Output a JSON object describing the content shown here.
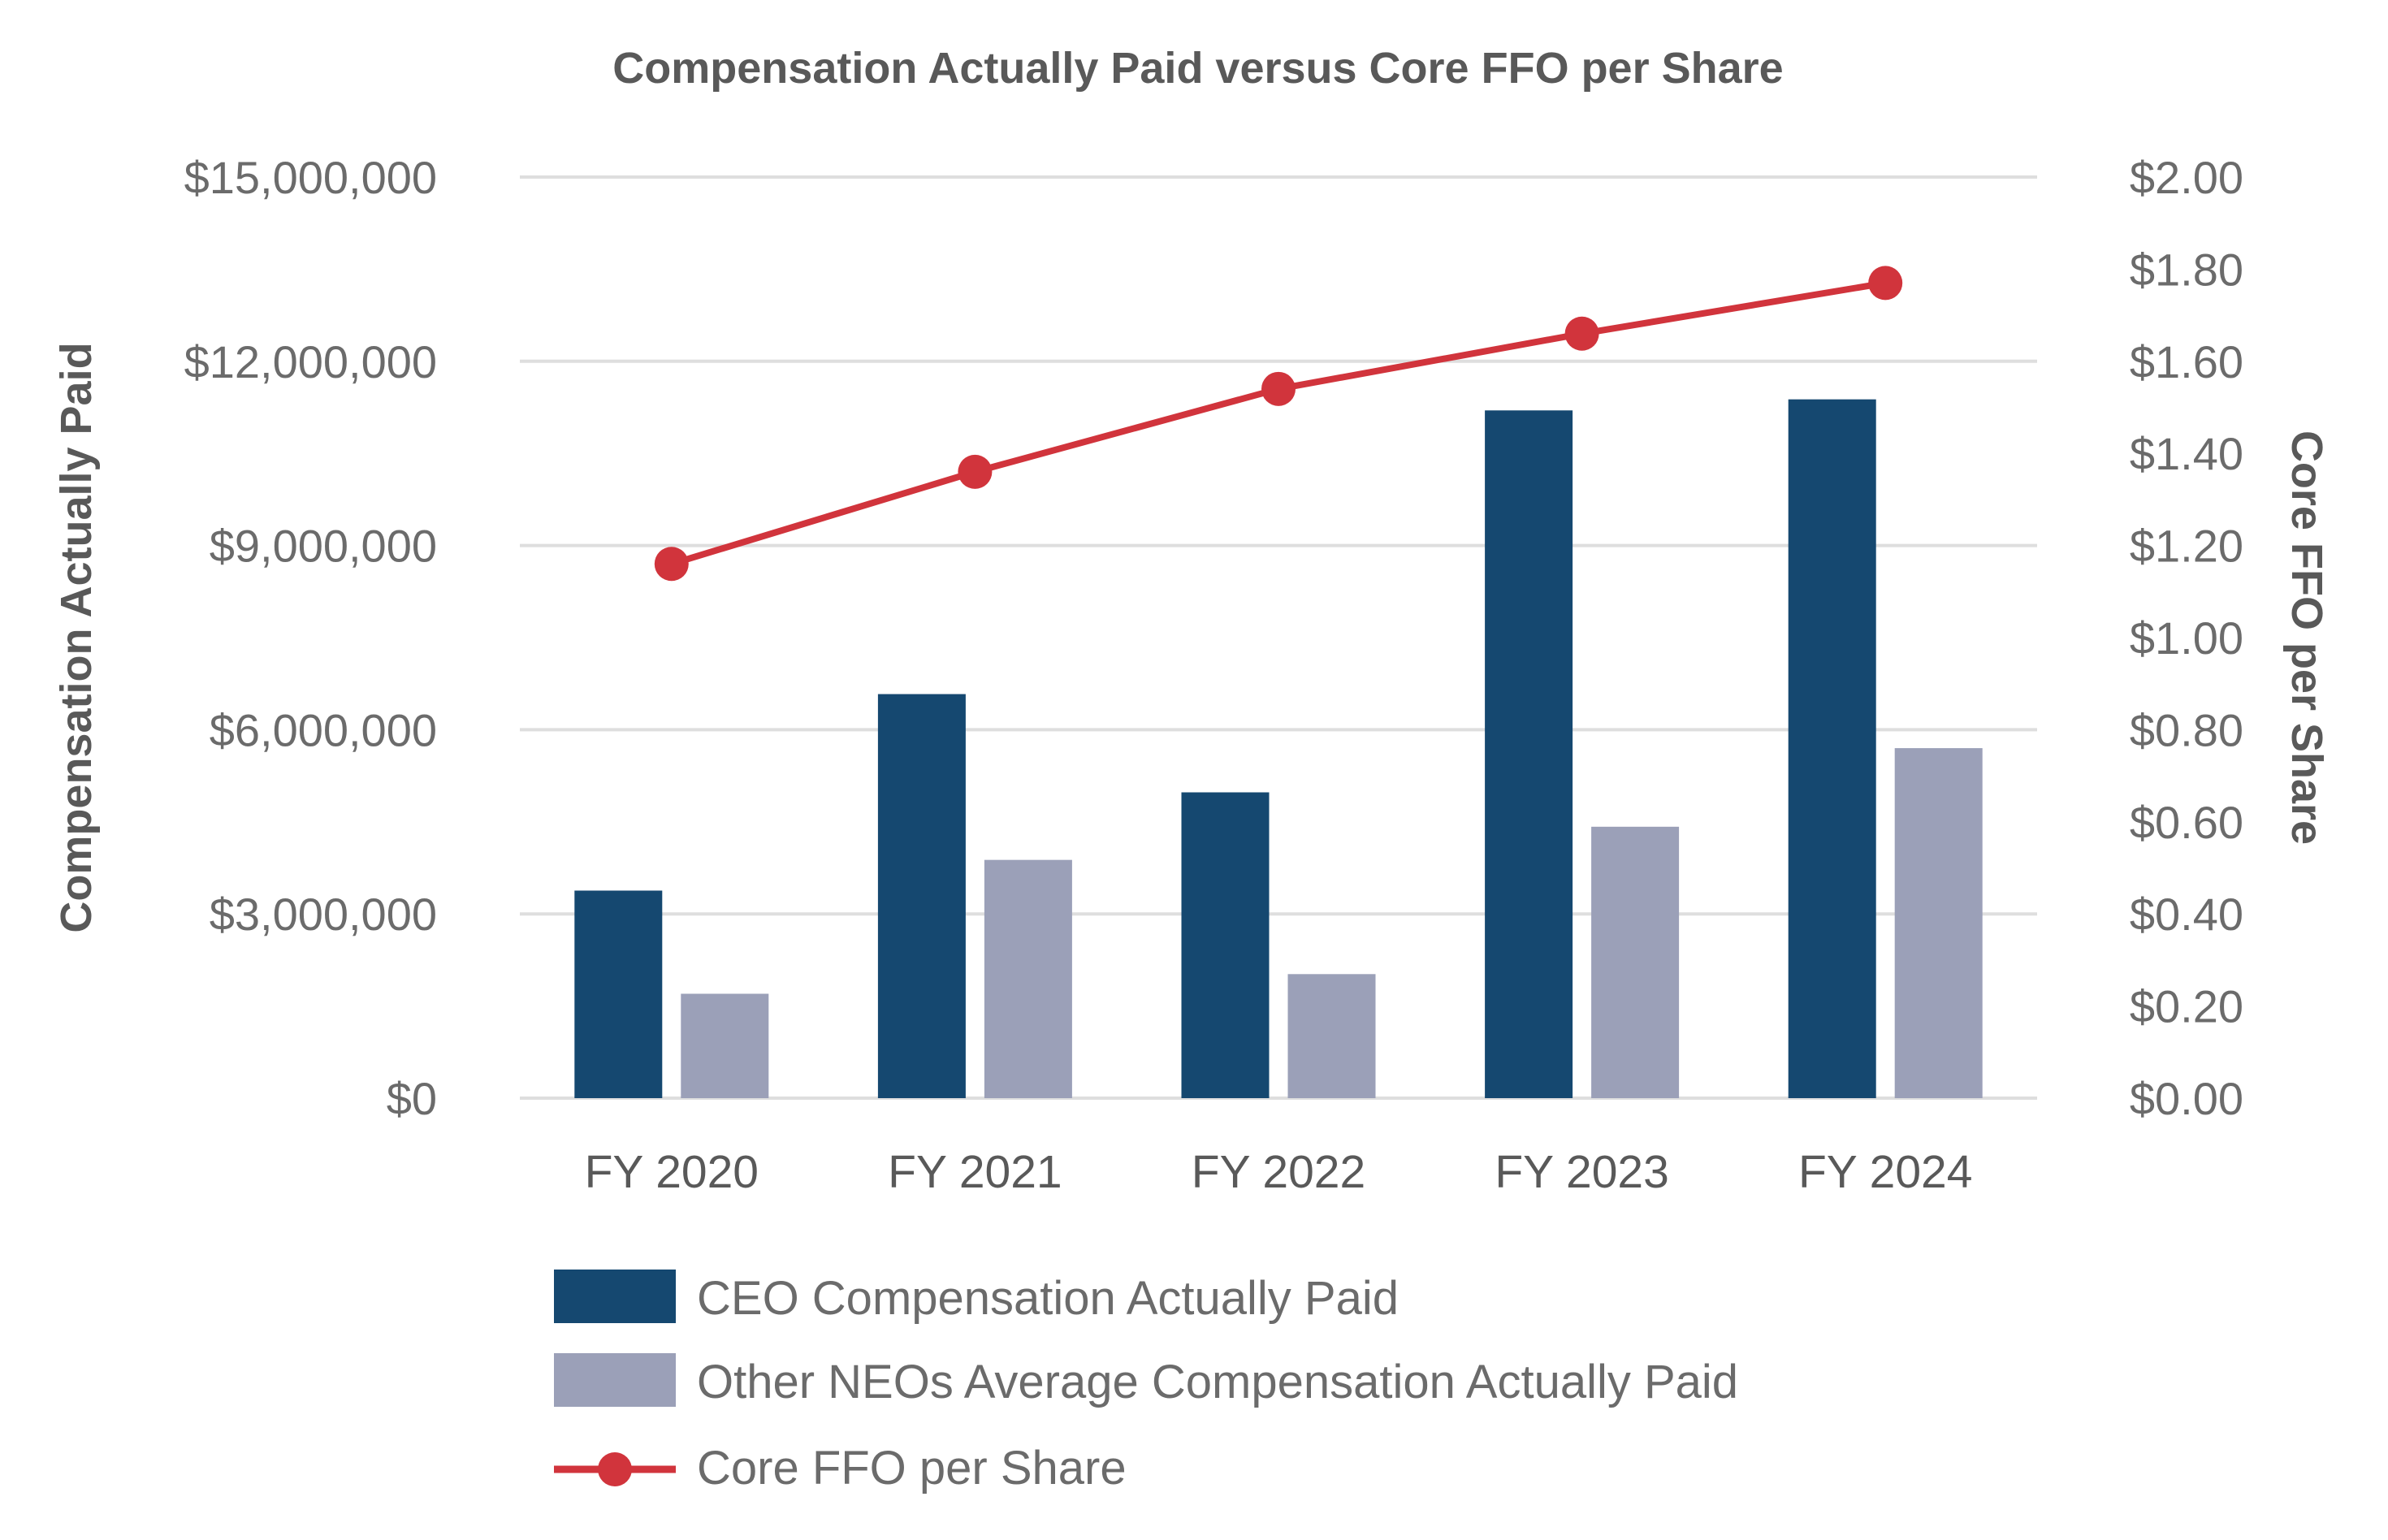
{
  "chart_data": {
    "type": "bar",
    "title": "Compensation Actually Paid versus Core FFO per Share",
    "categories": [
      "FY 2020",
      "FY 2021",
      "FY 2022",
      "FY 2023",
      "FY 2024"
    ],
    "series": [
      {
        "name": "CEO Compensation Actually Paid",
        "kind": "bar",
        "axis": "left",
        "color": "#154870",
        "values": [
          3380000,
          6580000,
          4980000,
          11200000,
          11380000
        ]
      },
      {
        "name": "Other NEOs Average Compensation Actually Paid",
        "kind": "bar",
        "axis": "left",
        "color": "#9ba0b8",
        "values": [
          1700000,
          3880000,
          2020000,
          4420000,
          5700000
        ]
      },
      {
        "name": "Core FFO per Share",
        "kind": "line",
        "axis": "right",
        "color": "#d1343c",
        "values": [
          1.16,
          1.36,
          1.54,
          1.66,
          1.77
        ]
      }
    ],
    "ylabel": "Compensation Actually Paid",
    "ylim": [
      0,
      15000000
    ],
    "yticks": [
      0,
      3000000,
      6000000,
      9000000,
      12000000,
      15000000
    ],
    "ytick_labels": [
      "$0",
      "$3,000,000",
      "$6,000,000",
      "$9,000,000",
      "$12,000,000",
      "$15,000,000"
    ],
    "y2label": "Core FFO per Share",
    "y2lim": [
      0,
      2.0
    ],
    "y2ticks": [
      0,
      0.2,
      0.4,
      0.6,
      0.8,
      1.0,
      1.2,
      1.4,
      1.6,
      1.8,
      2.0
    ],
    "y2tick_labels": [
      "$0.00",
      "$0.20",
      "$0.40",
      "$0.60",
      "$0.80",
      "$1.00",
      "$1.20",
      "$1.40",
      "$1.60",
      "$1.80",
      "$2.00"
    ],
    "grid": true,
    "legend_position": "bottom"
  }
}
